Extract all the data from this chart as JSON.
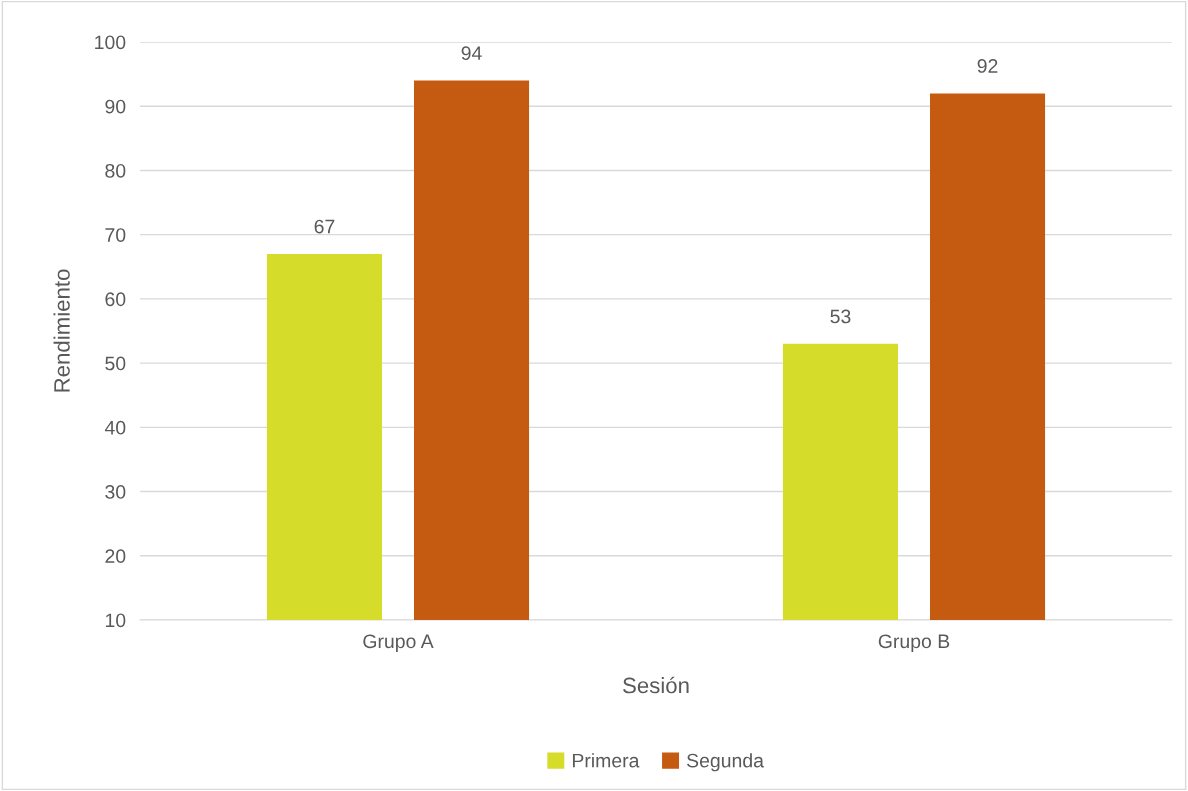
{
  "chart_data": {
    "type": "bar",
    "xlabel": "Sesión",
    "ylabel": "Rendimiento",
    "categories": [
      "Grupo A",
      "Grupo B"
    ],
    "series": [
      {
        "name": "Primera",
        "color": "#d6dc2a",
        "values": [
          67,
          53
        ]
      },
      {
        "name": "Segunda",
        "color": "#c55a11",
        "values": [
          94,
          92
        ]
      }
    ],
    "ylim": [
      10,
      100
    ],
    "yticks": [
      10,
      20,
      30,
      40,
      50,
      60,
      70,
      80,
      90,
      100
    ],
    "grid": "y",
    "legend": "bottom",
    "data_labels": true
  }
}
